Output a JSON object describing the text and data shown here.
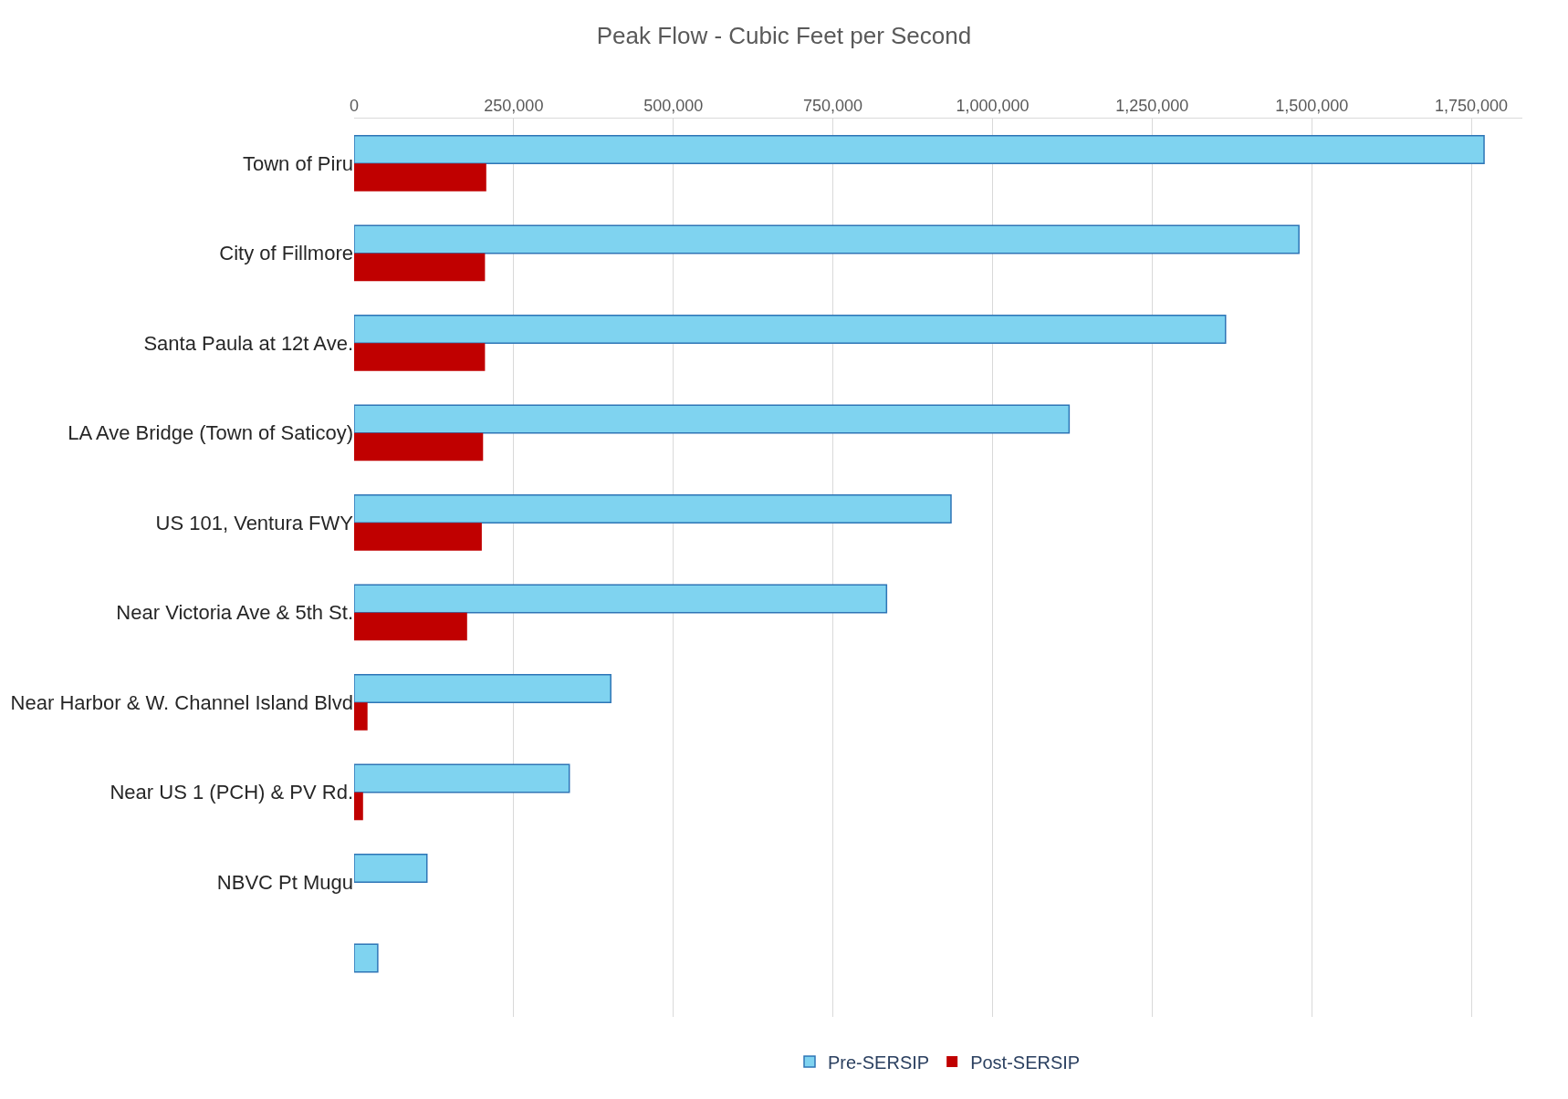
{
  "chart_data": {
    "type": "bar",
    "orientation": "horizontal",
    "title": "Peak Flow - Cubic Feet per Second",
    "categories": [
      "Town of Piru",
      "City of Fillmore",
      "Santa Paula at 12t Ave.",
      "LA Ave Bridge (Town of Saticoy)",
      "US 101, Ventura FWY",
      "Near Victoria Ave & 5th St.",
      "Near Harbor & W. Channel Island Blvd",
      "Near US 1 (PCH) & PV Rd.",
      "NBVC Pt Mugu",
      null
    ],
    "series": [
      {
        "name": "Pre-SERSIP",
        "color": "#7fd3f0",
        "values": [
          1770000,
          1480000,
          1365000,
          1120000,
          935000,
          834000,
          402000,
          337000,
          114000,
          37000
        ]
      },
      {
        "name": "Post-SERSIP",
        "color": "#c00000",
        "values": [
          207000,
          205000,
          205000,
          202000,
          200000,
          177000,
          21000,
          14000,
          null,
          null
        ]
      }
    ],
    "xlim": [
      0,
      1830000
    ],
    "xticks": [
      {
        "value": 0,
        "label": "0"
      },
      {
        "value": 250000,
        "label": "250,000"
      },
      {
        "value": 500000,
        "label": "500,000"
      },
      {
        "value": 750000,
        "label": "750,000"
      },
      {
        "value": 1000000,
        "label": "1,000,000"
      },
      {
        "value": 1250000,
        "label": "1,250,000"
      },
      {
        "value": 1500000,
        "label": "1,500,000"
      },
      {
        "value": 1750000,
        "label": "1,750,000"
      }
    ],
    "grid": "x",
    "legend": "bottom"
  }
}
